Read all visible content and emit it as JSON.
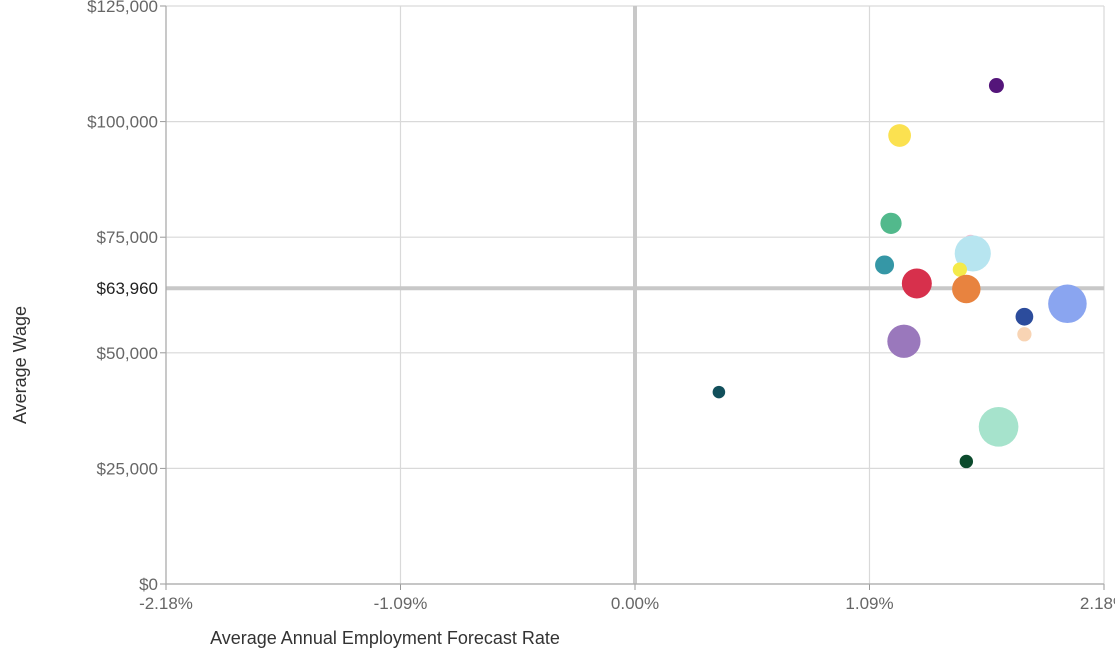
{
  "chart_data": {
    "type": "scatter",
    "title": "",
    "xlabel": "Average Annual Employment Forecast Rate",
    "ylabel": "Average Wage",
    "xlim": [
      -2.18,
      2.18
    ],
    "ylim": [
      0,
      125000
    ],
    "x_ticks": [
      -2.18,
      -1.09,
      0.0,
      1.09,
      2.18
    ],
    "x_tick_labels": [
      "-2.18%",
      "-1.09%",
      "0.00%",
      "1.09%",
      "2.18%"
    ],
    "y_ticks": [
      0,
      25000,
      50000,
      75000,
      100000,
      125000
    ],
    "y_tick_labels": [
      "$0",
      "$25,000",
      "$50,000",
      "$75,000",
      "$100,000",
      "$125,000"
    ],
    "grid": true,
    "reference_lines": {
      "x": 0.0,
      "y": 63960,
      "y_label": "$63,960"
    },
    "points": [
      {
        "x": 1.68,
        "y": 107800,
        "size": 1.0,
        "color": "#54157a"
      },
      {
        "x": 1.23,
        "y": 97000,
        "size": 2.3,
        "color": "#fbe150"
      },
      {
        "x": 1.19,
        "y": 78000,
        "size": 2.0,
        "color": "#52b98c"
      },
      {
        "x": 1.56,
        "y": 74000,
        "size": 0.9,
        "color": "#f6bcd0"
      },
      {
        "x": 1.57,
        "y": 71500,
        "size": 5.8,
        "color": "#b7e5f0"
      },
      {
        "x": 1.16,
        "y": 69000,
        "size": 1.6,
        "color": "#3597a6"
      },
      {
        "x": 1.51,
        "y": 68000,
        "size": 0.9,
        "color": "#f4ea4a"
      },
      {
        "x": 1.31,
        "y": 65000,
        "size": 4.0,
        "color": "#d7304c"
      },
      {
        "x": 1.54,
        "y": 63800,
        "size": 3.6,
        "color": "#e8833f"
      },
      {
        "x": 2.01,
        "y": 60600,
        "size": 6.6,
        "color": "#8aa5f0"
      },
      {
        "x": 1.81,
        "y": 57800,
        "size": 1.4,
        "color": "#2c4c9c"
      },
      {
        "x": 1.81,
        "y": 54000,
        "size": 0.9,
        "color": "#f8d4b4"
      },
      {
        "x": 1.25,
        "y": 52500,
        "size": 4.9,
        "color": "#9a78bc"
      },
      {
        "x": 0.39,
        "y": 41500,
        "size": 0.7,
        "color": "#114f5b"
      },
      {
        "x": 1.69,
        "y": 34000,
        "size": 7.0,
        "color": "#a6e3cc"
      },
      {
        "x": 1.54,
        "y": 26500,
        "size": 0.8,
        "color": "#0b4a2c"
      }
    ]
  }
}
